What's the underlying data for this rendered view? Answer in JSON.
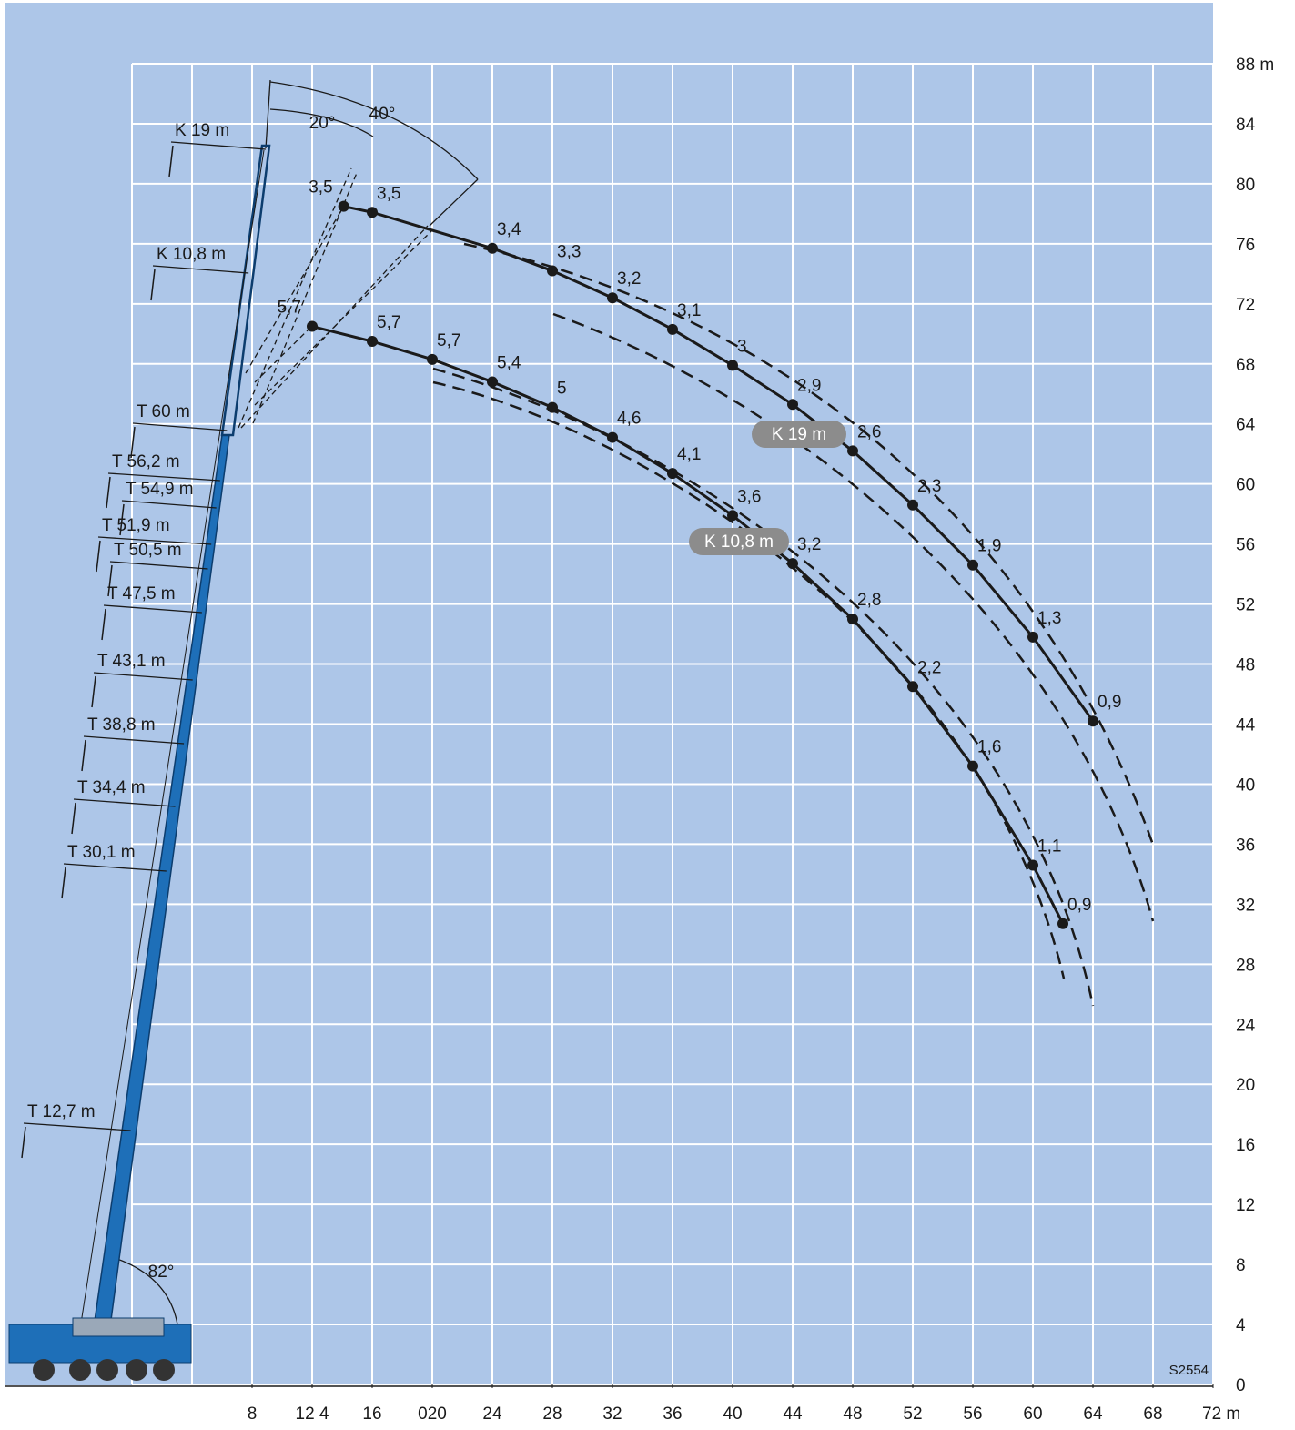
{
  "chart_data": {
    "type": "line",
    "xlim": [
      0,
      72
    ],
    "ylim": [
      0,
      88
    ],
    "xgrid": [
      0,
      4,
      8,
      12,
      16,
      20,
      24,
      28,
      32,
      36,
      40,
      44,
      48,
      52,
      56,
      60,
      64,
      68,
      72
    ],
    "xticks": [
      8,
      {
        "value": 12,
        "label": "12 4"
      },
      16,
      {
        "value": 20,
        "label": "020"
      },
      24,
      28,
      32,
      36,
      40,
      44,
      48,
      52,
      56,
      60,
      64,
      68,
      {
        "value": 72,
        "label": "72 m"
      }
    ],
    "yticks": [
      0,
      4,
      8,
      12,
      16,
      20,
      24,
      28,
      32,
      36,
      40,
      44,
      48,
      52,
      56,
      60,
      64,
      68,
      72,
      76,
      80,
      84,
      {
        "value": 88,
        "label": "88 m"
      }
    ],
    "grid": true,
    "series": [
      {
        "name": "K 19 m",
        "color": "#1a1a1a",
        "x": [
          14.1,
          16,
          24,
          28,
          32,
          36,
          40,
          44,
          48,
          52,
          56,
          60,
          64
        ],
        "values": [
          78.5,
          78.1,
          75.7,
          74.2,
          72.4,
          70.3,
          67.9,
          65.3,
          62.2,
          58.6,
          54.6,
          49.8,
          44.2
        ],
        "loads": [
          3.5,
          3.5,
          3.4,
          3.3,
          3.2,
          3.1,
          3,
          2.9,
          2.6,
          2.3,
          1.9,
          1.3,
          0.9
        ],
        "load_labels": [
          "3,5",
          "3,5",
          "3,4",
          "3,3",
          "3,2",
          "3,1",
          "3",
          "2,9",
          "2,6",
          "2,3",
          "1,9",
          "1,3",
          "0,9"
        ]
      },
      {
        "name": "K 10,8 m",
        "color": "#1a1a1a",
        "x": [
          12,
          16,
          20,
          24,
          28,
          32,
          36,
          40,
          44,
          48,
          52,
          56,
          60,
          62
        ],
        "values": [
          70.5,
          69.5,
          68.3,
          66.8,
          65.1,
          63.1,
          60.7,
          57.9,
          54.7,
          51.0,
          46.5,
          41.2,
          34.6,
          30.7
        ],
        "loads": [
          5.7,
          5.7,
          5.7,
          5.4,
          5,
          4.6,
          4.1,
          3.6,
          3.2,
          2.8,
          2.2,
          1.6,
          1.1,
          0.9
        ],
        "load_labels": [
          "5,7",
          "5,7",
          "5,7",
          "5,4",
          "5",
          "4,6",
          "4,1",
          "3,6",
          "3,2",
          "2,8",
          "2,2",
          "1,6",
          "1,1",
          "0,9"
        ]
      }
    ],
    "boom_labels": [
      "K 19 m",
      "K 10,8 m",
      "T 60 m",
      "T 56,2 m",
      "T 54,9 m",
      "T 51,9 m",
      "T 50,5 m",
      "T 47,5 m",
      "T 43,1 m",
      "T 38,8 m",
      "T 34,4 m",
      "T 30,1 m",
      "T 12,7 m"
    ],
    "angle_labels": [
      "20°",
      "40°",
      "82°"
    ],
    "code": "S2554"
  }
}
